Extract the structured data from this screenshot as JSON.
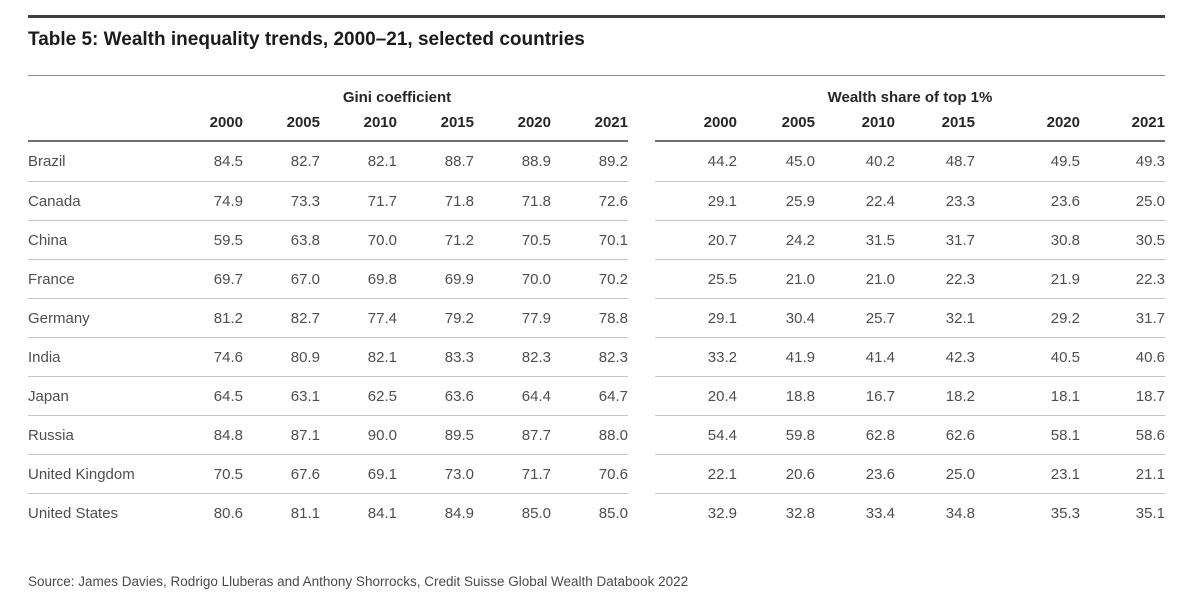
{
  "title": "Table 5: Wealth inequality trends, 2000–21, selected countries",
  "table": {
    "groups": [
      {
        "label": "Gini coefficient",
        "years": [
          "2000",
          "2005",
          "2010",
          "2015",
          "2020",
          "2021"
        ]
      },
      {
        "label": "Wealth share of top 1%",
        "years": [
          "2000",
          "2005",
          "2010",
          "2015",
          "2020",
          "2021"
        ]
      }
    ],
    "rows": [
      {
        "country": "Brazil",
        "gini": [
          "84.5",
          "82.7",
          "82.1",
          "88.7",
          "88.9",
          "89.2"
        ],
        "top1": [
          "44.2",
          "45.0",
          "40.2",
          "48.7",
          "49.5",
          "49.3"
        ]
      },
      {
        "country": "Canada",
        "gini": [
          "74.9",
          "73.3",
          "71.7",
          "71.8",
          "71.8",
          "72.6"
        ],
        "top1": [
          "29.1",
          "25.9",
          "22.4",
          "23.3",
          "23.6",
          "25.0"
        ]
      },
      {
        "country": "China",
        "gini": [
          "59.5",
          "63.8",
          "70.0",
          "71.2",
          "70.5",
          "70.1"
        ],
        "top1": [
          "20.7",
          "24.2",
          "31.5",
          "31.7",
          "30.8",
          "30.5"
        ]
      },
      {
        "country": "France",
        "gini": [
          "69.7",
          "67.0",
          "69.8",
          "69.9",
          "70.0",
          "70.2"
        ],
        "top1": [
          "25.5",
          "21.0",
          "21.0",
          "22.3",
          "21.9",
          "22.3"
        ]
      },
      {
        "country": "Germany",
        "gini": [
          "81.2",
          "82.7",
          "77.4",
          "79.2",
          "77.9",
          "78.8"
        ],
        "top1": [
          "29.1",
          "30.4",
          "25.7",
          "32.1",
          "29.2",
          "31.7"
        ]
      },
      {
        "country": "India",
        "gini": [
          "74.6",
          "80.9",
          "82.1",
          "83.3",
          "82.3",
          "82.3"
        ],
        "top1": [
          "33.2",
          "41.9",
          "41.4",
          "42.3",
          "40.5",
          "40.6"
        ]
      },
      {
        "country": "Japan",
        "gini": [
          "64.5",
          "63.1",
          "62.5",
          "63.6",
          "64.4",
          "64.7"
        ],
        "top1": [
          "20.4",
          "18.8",
          "16.7",
          "18.2",
          "18.1",
          "18.7"
        ]
      },
      {
        "country": "Russia",
        "gini": [
          "84.8",
          "87.1",
          "90.0",
          "89.5",
          "87.7",
          "88.0"
        ],
        "top1": [
          "54.4",
          "59.8",
          "62.8",
          "62.6",
          "58.1",
          "58.6"
        ]
      },
      {
        "country": "United Kingdom",
        "gini": [
          "70.5",
          "67.6",
          "69.1",
          "73.0",
          "71.7",
          "70.6"
        ],
        "top1": [
          "22.1",
          "20.6",
          "23.6",
          "25.0",
          "23.1",
          "21.1"
        ]
      },
      {
        "country": "United States",
        "gini": [
          "80.6",
          "81.1",
          "84.1",
          "84.9",
          "85.0",
          "85.0"
        ],
        "top1": [
          "32.9",
          "32.8",
          "33.4",
          "34.8",
          "35.3",
          "35.1"
        ]
      }
    ]
  },
  "source": "Source: James Davies, Rodrigo Lluberas and Anthony Shorrocks, Credit Suisse Global Wealth Databook 2022"
}
